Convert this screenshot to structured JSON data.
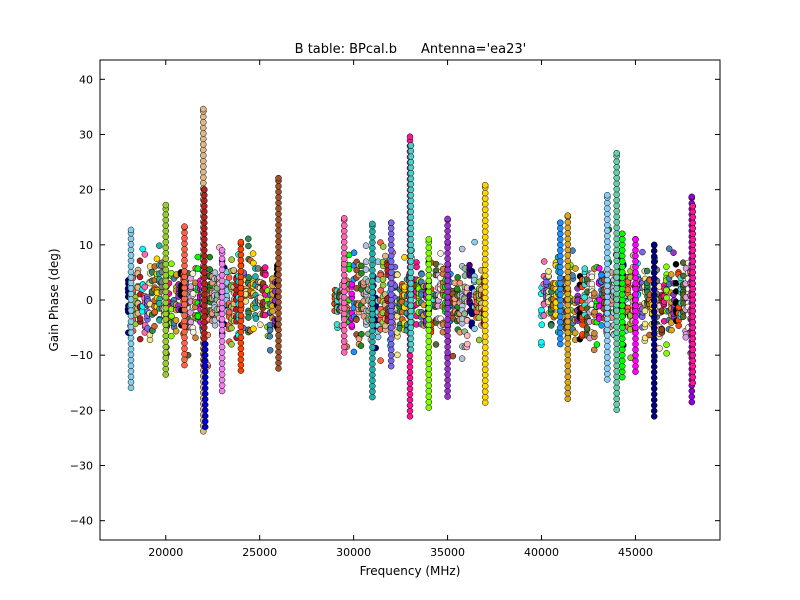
{
  "chart_data": {
    "type": "scatter",
    "title": "B table: BPcal.b",
    "subtitle": "Antenna='ea23'",
    "xlabel": "Frequency (MHz)",
    "ylabel": "Gain Phase (deg)",
    "xlim": [
      16500,
      49500
    ],
    "ylim": [
      -43.5,
      43.5
    ],
    "xticks": [
      20000,
      25000,
      30000,
      35000,
      40000,
      45000
    ],
    "yticks": [
      -40,
      -30,
      -20,
      -10,
      0,
      10,
      20,
      30,
      40
    ],
    "grid": false,
    "legend": "none",
    "marker": "circle",
    "bands": [
      {
        "x_start": 18000,
        "x_end": 26000,
        "spw_spacing": 128,
        "spread": 6
      },
      {
        "x_start": 29000,
        "x_end": 37000,
        "spw_spacing": 128,
        "spread": 6
      },
      {
        "x_start": 40000,
        "x_end": 48000,
        "spw_spacing": 128,
        "spread": 6
      }
    ],
    "highlights": [
      {
        "x": 18150,
        "min": -15.9,
        "max": 12.7,
        "color": "#87ceeb"
      },
      {
        "x": 20000,
        "min": -13.5,
        "max": 17.2,
        "color": "#9acd32"
      },
      {
        "x": 21000,
        "min": -11.8,
        "max": 13.3,
        "color": "#ff6347"
      },
      {
        "x": 22000,
        "min": -23.8,
        "max": 34.6,
        "color": "#deb887"
      },
      {
        "x": 22050,
        "min": -12.0,
        "max": 20.0,
        "color": "#b22222"
      },
      {
        "x": 22100,
        "min": -23.0,
        "max": -8.0,
        "color": "#0000cd"
      },
      {
        "x": 23000,
        "min": -16.5,
        "max": 9.0,
        "color": "#ee82ee"
      },
      {
        "x": 24000,
        "min": -12.8,
        "max": 10.5,
        "color": "#ff4500"
      },
      {
        "x": 26000,
        "min": -12.4,
        "max": 22.1,
        "color": "#a0522d"
      },
      {
        "x": 29500,
        "min": -9.5,
        "max": 14.8,
        "color": "#ff69b4"
      },
      {
        "x": 31000,
        "min": -17.6,
        "max": 13.8,
        "color": "#20b2aa"
      },
      {
        "x": 32000,
        "min": -12.0,
        "max": 14.0,
        "color": "#7b68ee"
      },
      {
        "x": 33000,
        "min": -21.1,
        "max": 29.6,
        "color": "#ff1493"
      },
      {
        "x": 33050,
        "min": -9.0,
        "max": 28.0,
        "color": "#48d1cc"
      },
      {
        "x": 34000,
        "min": -19.5,
        "max": 11.0,
        "color": "#7fff00"
      },
      {
        "x": 35000,
        "min": -17.5,
        "max": 14.7,
        "color": "#9932cc"
      },
      {
        "x": 37000,
        "min": -18.6,
        "max": 20.8,
        "color": "#ffd700"
      },
      {
        "x": 41000,
        "min": -8.0,
        "max": 14.0,
        "color": "#1e90ff"
      },
      {
        "x": 41400,
        "min": -17.9,
        "max": 15.3,
        "color": "#daa520"
      },
      {
        "x": 43500,
        "min": -14.4,
        "max": 19.0,
        "color": "#87cefa"
      },
      {
        "x": 44000,
        "min": -19.9,
        "max": 26.6,
        "color": "#66cdaa"
      },
      {
        "x": 44300,
        "min": -14.0,
        "max": 12.0,
        "color": "#00ff00"
      },
      {
        "x": 45000,
        "min": -13.0,
        "max": 11.0,
        "color": "#ff00ff"
      },
      {
        "x": 46000,
        "min": -21.1,
        "max": 10.0,
        "color": "#000080"
      },
      {
        "x": 48000,
        "min": -18.5,
        "max": 18.7,
        "color": "#9400d3"
      },
      {
        "x": 48050,
        "min": -15.0,
        "max": 17.0,
        "color": "#ff1493"
      }
    ],
    "palette": [
      "#000080",
      "#87ceeb",
      "#ff6347",
      "#9acd32",
      "#deb887",
      "#b22222",
      "#00ffff",
      "#ff69b4",
      "#7b68ee",
      "#f0e68c",
      "#2e8b57",
      "#d2691e",
      "#ffd700",
      "#20b2aa",
      "#808080",
      "#ffe4c4",
      "#8b4513",
      "#ff1493",
      "#7fff00",
      "#4682b4",
      "#daa520",
      "#9932cc",
      "#000000",
      "#ff4500",
      "#40e0d0",
      "#556b2f",
      "#dda0dd",
      "#f5f5dc",
      "#cd853f",
      "#00ff00",
      "#ff00ff",
      "#1e90ff",
      "#a0522d",
      "#ffa07a",
      "#228b22",
      "#e9967a",
      "#b0c4de",
      "#8fbc8f",
      "#ffb6c1",
      "#4b0082"
    ]
  }
}
